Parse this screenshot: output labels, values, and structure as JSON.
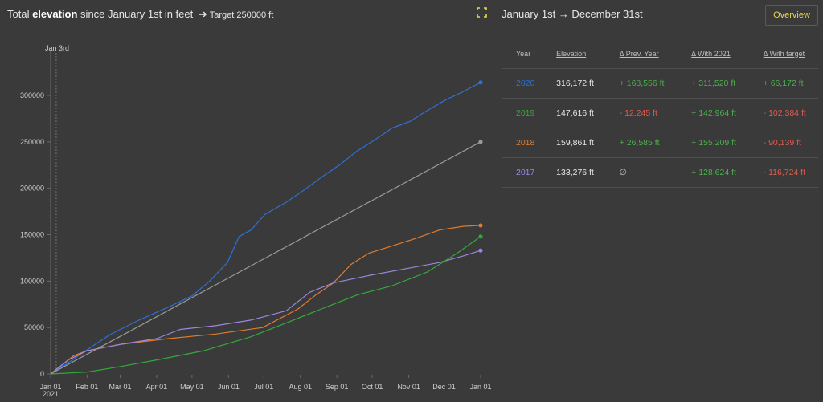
{
  "header": {
    "title_prefix": "Total ",
    "title_bold": "elevation",
    "title_suffix": " since January 1st in feet",
    "arrow": "➔",
    "target_text": "Target 250000 ft"
  },
  "right_panel": {
    "title": "January 1st → December 31st",
    "overview_label": "Overview",
    "columns": [
      "Year",
      "Elevation",
      "Δ Prev. Year",
      "Δ With 2021",
      "Δ With target"
    ],
    "rows": [
      {
        "year": "2020",
        "color": "#2f6fd6",
        "elevation": "316,172 ft",
        "prev": "+ 168,556 ft",
        "prev_sign": "pos",
        "with2021": "+ 311,520 ft",
        "with2021_sign": "pos",
        "target": "+ 66,172 ft",
        "target_sign": "pos"
      },
      {
        "year": "2019",
        "color": "#35a83c",
        "elevation": "147,616 ft",
        "prev": "- 12,245 ft",
        "prev_sign": "neg",
        "with2021": "+ 142,964 ft",
        "with2021_sign": "pos",
        "target": "- 102,384 ft",
        "target_sign": "neg"
      },
      {
        "year": "2018",
        "color": "#e07b2e",
        "elevation": "159,861 ft",
        "prev": "+ 26,585 ft",
        "prev_sign": "pos",
        "with2021": "+ 155,209 ft",
        "with2021_sign": "pos",
        "target": "- 90,139 ft",
        "target_sign": "neg"
      },
      {
        "year": "2017",
        "color": "#9c86e0",
        "elevation": "133,276 ft",
        "prev": "∅",
        "prev_sign": "muted",
        "with2021": "+ 128,624 ft",
        "with2021_sign": "pos",
        "target": "- 116,724 ft",
        "target_sign": "neg"
      }
    ]
  },
  "chart_data": {
    "type": "line",
    "marker_label": "Jan 3rd",
    "ylim": [
      0,
      330000
    ],
    "yticks": [
      0,
      50000,
      100000,
      150000,
      200000,
      250000,
      300000
    ],
    "ytick_labels": [
      "0",
      "50000",
      "100000",
      "150000",
      "200000",
      "250000",
      "300000"
    ],
    "xtick_labels": [
      "Jan 01",
      "Feb 01",
      "Mar 01",
      "Apr 01",
      "May 01",
      "Jun 01",
      "Jul 01",
      "Aug 01",
      "Sep 01",
      "Oct 01",
      "Nov 01",
      "Dec 01",
      "Jan 01"
    ],
    "xtick_sublabel": "2021",
    "x_unit": "day of year",
    "series": [
      {
        "name": "2020",
        "color": "#2f6fd6",
        "x": [
          0,
          15,
          31,
          50,
          75,
          100,
          120,
          135,
          150,
          160,
          170,
          182,
          200,
          215,
          230,
          245,
          260,
          275,
          290,
          305,
          320,
          335,
          350,
          365
        ],
        "y": [
          0,
          12000,
          26000,
          42000,
          58000,
          72000,
          84000,
          100000,
          120000,
          148000,
          155000,
          172000,
          185000,
          198000,
          212000,
          225000,
          240000,
          252000,
          265000,
          272000,
          284000,
          295000,
          304000,
          314000
        ]
      },
      {
        "name": "2018",
        "color": "#e07b2e",
        "x": [
          0,
          20,
          31,
          60,
          100,
          140,
          180,
          210,
          225,
          240,
          255,
          270,
          290,
          310,
          330,
          350,
          365
        ],
        "y": [
          0,
          20000,
          25000,
          32000,
          38000,
          43000,
          50000,
          70000,
          85000,
          98000,
          118000,
          130000,
          138000,
          146000,
          155000,
          159000,
          160000
        ]
      },
      {
        "name": "2017",
        "color": "#9c86e0",
        "x": [
          0,
          15,
          31,
          60,
          90,
          110,
          140,
          170,
          200,
          220,
          240,
          270,
          300,
          330,
          350,
          365
        ],
        "y": [
          0,
          15000,
          25000,
          32000,
          38000,
          48000,
          52000,
          58000,
          68000,
          88000,
          98000,
          106000,
          113000,
          120000,
          127000,
          133000
        ]
      },
      {
        "name": "2019",
        "color": "#35a83c",
        "x": [
          0,
          31,
          60,
          90,
          130,
          170,
          200,
          230,
          260,
          290,
          320,
          345,
          365
        ],
        "y": [
          0,
          2000,
          8000,
          15000,
          25000,
          40000,
          55000,
          70000,
          85000,
          95000,
          110000,
          130000,
          148000
        ]
      },
      {
        "name": "",
        "color": "#9a9a9a",
        "x": [
          0,
          365
        ],
        "y": [
          0,
          250000
        ]
      }
    ]
  }
}
